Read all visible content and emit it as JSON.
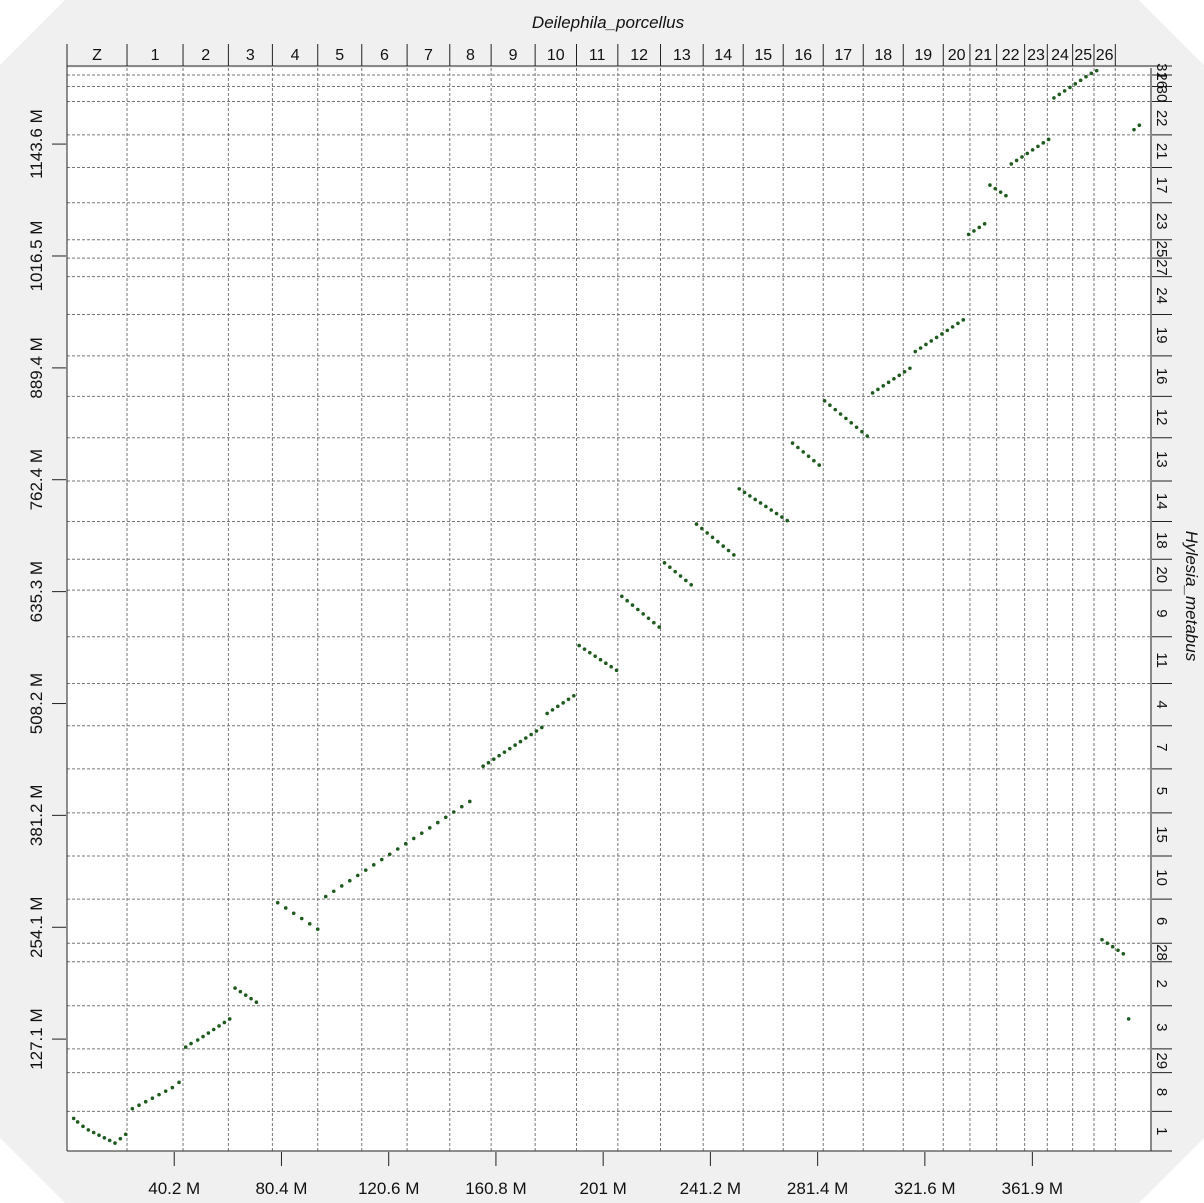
{
  "chart_data": {
    "type": "scatter",
    "title": "",
    "xlabel": "Deilephila_porcellus",
    "ylabel": "Hylesia_metabus",
    "xlim": [
      0,
      406
    ],
    "ylim": [
      0,
      1230
    ],
    "x_ticks": [
      {
        "value": 40.2,
        "label": "40.2 M"
      },
      {
        "value": 80.4,
        "label": "80.4 M"
      },
      {
        "value": 120.6,
        "label": "120.6 M"
      },
      {
        "value": 160.8,
        "label": "160.8 M"
      },
      {
        "value": 201,
        "label": "201 M"
      },
      {
        "value": 241.2,
        "label": "241.2 M"
      },
      {
        "value": 281.4,
        "label": "281.4 M"
      },
      {
        "value": 321.6,
        "label": "321.6 M"
      },
      {
        "value": 361.9,
        "label": "361.9 M"
      }
    ],
    "y_ticks": [
      {
        "value": 127.1,
        "label": "127.1 M"
      },
      {
        "value": 254.1,
        "label": "254.1 M"
      },
      {
        "value": 381.2,
        "label": "381.2 M"
      },
      {
        "value": 508.2,
        "label": "508.2 M"
      },
      {
        "value": 635.3,
        "label": "635.3 M"
      },
      {
        "value": 762.4,
        "label": "762.4 M"
      },
      {
        "value": 889.4,
        "label": "889.4 M"
      },
      {
        "value": 1016.5,
        "label": "1016.5 M"
      },
      {
        "value": 1143.6,
        "label": "1143.6 M"
      }
    ],
    "x_chromosomes": [
      {
        "label": "Z",
        "start": 0,
        "end": 22.5
      },
      {
        "label": "1",
        "start": 22.5,
        "end": 43.5
      },
      {
        "label": "2",
        "start": 43.5,
        "end": 60.5
      },
      {
        "label": "3",
        "start": 60.5,
        "end": 77.0
      },
      {
        "label": "4",
        "start": 77.0,
        "end": 94.0
      },
      {
        "label": "5",
        "start": 94.0,
        "end": 110.5
      },
      {
        "label": "6",
        "start": 110.5,
        "end": 127.5
      },
      {
        "label": "7",
        "start": 127.5,
        "end": 143.5
      },
      {
        "label": "8",
        "start": 143.5,
        "end": 159.0
      },
      {
        "label": "9",
        "start": 159.0,
        "end": 175.5
      },
      {
        "label": "10",
        "start": 175.5,
        "end": 191.0
      },
      {
        "label": "11",
        "start": 191.0,
        "end": 206.5
      },
      {
        "label": "12",
        "start": 206.5,
        "end": 222.5
      },
      {
        "label": "13",
        "start": 222.5,
        "end": 238.5
      },
      {
        "label": "14",
        "start": 238.5,
        "end": 253.5
      },
      {
        "label": "15",
        "start": 253.5,
        "end": 268.5
      },
      {
        "label": "16",
        "start": 268.5,
        "end": 283.5
      },
      {
        "label": "17",
        "start": 283.5,
        "end": 298.5
      },
      {
        "label": "18",
        "start": 298.5,
        "end": 313.5
      },
      {
        "label": "19",
        "start": 313.5,
        "end": 328.5
      },
      {
        "label": "20",
        "start": 328.5,
        "end": 338.5
      },
      {
        "label": "21",
        "start": 338.5,
        "end": 348.5
      },
      {
        "label": "22",
        "start": 348.5,
        "end": 359.0
      },
      {
        "label": "23",
        "start": 359.0,
        "end": 367.5
      },
      {
        "label": "24",
        "start": 367.5,
        "end": 377.0
      },
      {
        "label": "25",
        "start": 377.0,
        "end": 385.0
      },
      {
        "label": "26",
        "start": 385.0,
        "end": 393.0
      },
      {
        "label": "",
        "start": 393.0,
        "end": 406.0
      }
    ],
    "y_chromosomes": [
      {
        "label": "1",
        "start": 0,
        "end": 45
      },
      {
        "label": "8",
        "start": 45,
        "end": 89
      },
      {
        "label": "29",
        "start": 89,
        "end": 116
      },
      {
        "label": "3",
        "start": 116,
        "end": 165
      },
      {
        "label": "2",
        "start": 165,
        "end": 215
      },
      {
        "label": "28",
        "start": 215,
        "end": 236
      },
      {
        "label": "6",
        "start": 236,
        "end": 286
      },
      {
        "label": "10",
        "start": 286,
        "end": 335
      },
      {
        "label": "15",
        "start": 335,
        "end": 384
      },
      {
        "label": "5",
        "start": 384,
        "end": 434
      },
      {
        "label": "7",
        "start": 434,
        "end": 483
      },
      {
        "label": "4",
        "start": 483,
        "end": 531
      },
      {
        "label": "11",
        "start": 531,
        "end": 584
      },
      {
        "label": "9",
        "start": 584,
        "end": 637
      },
      {
        "label": "20",
        "start": 637,
        "end": 672
      },
      {
        "label": "18",
        "start": 672,
        "end": 715
      },
      {
        "label": "14",
        "start": 715,
        "end": 761
      },
      {
        "label": "13",
        "start": 761,
        "end": 810
      },
      {
        "label": "12",
        "start": 810,
        "end": 857
      },
      {
        "label": "16",
        "start": 857,
        "end": 903
      },
      {
        "label": "19",
        "start": 903,
        "end": 950
      },
      {
        "label": "24",
        "start": 950,
        "end": 993
      },
      {
        "label": "27",
        "start": 993,
        "end": 1014
      },
      {
        "label": "25",
        "start": 1014,
        "end": 1035
      },
      {
        "label": "23",
        "start": 1035,
        "end": 1077
      },
      {
        "label": "17",
        "start": 1077,
        "end": 1117
      },
      {
        "label": "21",
        "start": 1117,
        "end": 1154
      },
      {
        "label": "22",
        "start": 1154,
        "end": 1192
      },
      {
        "label": "30",
        "start": 1192,
        "end": 1209
      },
      {
        "label": "26",
        "start": 1209,
        "end": 1222
      },
      {
        "label": "31",
        "start": 1222,
        "end": 1230
      }
    ],
    "series": [
      {
        "x": [
          2.5,
          4.0,
          6.0,
          8.0,
          10.0,
          12.0,
          14.0,
          16.0,
          18.0,
          20.0,
          22.0,
          24.5,
          27.0,
          29.5,
          32.0,
          34.5,
          37.0,
          39.5,
          42.0,
          44.5,
          46.5,
          49.0,
          51.0,
          53.0,
          55.0,
          57.0,
          59.0,
          61.0,
          63.0,
          65.0,
          67.0,
          69.0,
          71.0,
          79.0,
          82.0,
          85.0,
          88.0,
          91.0,
          94.0,
          97.0,
          100.0,
          103.0,
          106.0,
          109.0,
          112.0,
          115.0,
          118.0,
          121.0,
          124.0,
          127.0,
          130.0,
          133.0,
          136.0,
          139.0,
          142.0,
          145.0,
          148.0,
          151.0,
          156.0,
          158.0,
          160.0,
          162.0,
          164.0,
          166.0,
          168.0,
          170.0,
          172.0,
          174.0,
          176.0,
          178.0,
          180.0,
          182.0,
          184.0,
          186.0,
          188.0,
          190.0,
          192.0,
          194.0,
          196.0,
          198.0,
          200.0,
          202.0,
          204.0,
          206.0,
          208.0,
          210.0,
          212.0,
          214.0,
          216.0,
          218.0,
          220.0,
          222.0,
          224.0,
          226.0,
          228.0,
          230.0,
          232.0,
          234.0,
          236.0,
          238.0,
          240.0,
          242.0,
          244.0,
          246.0,
          248.0,
          250.0,
          252.0,
          254.0,
          256.0,
          258.0,
          260.0,
          262.0,
          264.0,
          266.0,
          268.0,
          270.0,
          272.0,
          274.0,
          276.0,
          278.0,
          280.0,
          282.0,
          284.0,
          286.0,
          288.0,
          290.0,
          292.0,
          294.0,
          296.0,
          298.0,
          300.0,
          302.0,
          304.0,
          306.0,
          308.0,
          310.0,
          312.0,
          314.0,
          316.0,
          318.0,
          320.0,
          322.0,
          324.0,
          326.0,
          328.0,
          330.0,
          332.0,
          334.0,
          336.0,
          338.0,
          340.0,
          342.0,
          344.0,
          346.0,
          348.0,
          350.0,
          352.0,
          354.0,
          356.0,
          358.0,
          360.0,
          362.0,
          364.0,
          366.0,
          368.0,
          370.0,
          372.0,
          374.0,
          376.0,
          378.0,
          380.0,
          382.0,
          384.0,
          386.0,
          388.0,
          390.0,
          392.0,
          394.0,
          396.0,
          398.0,
          400.0,
          402.0
        ],
        "y": [
          37.0,
          33.0,
          28.0,
          24.0,
          21.0,
          18.0,
          15.0,
          12.0,
          9.0,
          14.0,
          19.0,
          48.0,
          52.0,
          56.0,
          60.0,
          64.0,
          68.0,
          72.0,
          78.0,
          118.0,
          122.0,
          126.0,
          130.0,
          134.0,
          138.0,
          142.0,
          146.0,
          150.0,
          185.0,
          181.0,
          177.0,
          173.0,
          169.0,
          282.0,
          276.0,
          270.0,
          264.0,
          258.0,
          252.0,
          289.0,
          295.0,
          301.0,
          307.0,
          313.0,
          319.0,
          325.0,
          331.0,
          337.0,
          343.0,
          349.0,
          355.0,
          361.0,
          367.0,
          373.0,
          379.0,
          385.0,
          391.0,
          397.0,
          437.0,
          441.0,
          445.0,
          449.0,
          453.0,
          457.0,
          461.0,
          465.0,
          469.0,
          473.0,
          477.0,
          481.0,
          497.0,
          501.0,
          505.0,
          509.0,
          513.0,
          517.0,
          574.0,
          570.0,
          566.0,
          562.0,
          558.0,
          554.0,
          550.0,
          546.0,
          630.0,
          625.0,
          620.0,
          615.0,
          610.0,
          605.0,
          600.0,
          595.0,
          668.0,
          663.0,
          658.0,
          653.0,
          648.0,
          643.0,
          712.0,
          707.0,
          702.0,
          697.0,
          692.0,
          687.0,
          682.0,
          677.0,
          752.0,
          748.0,
          744.0,
          740.0,
          736.0,
          732.0,
          728.0,
          724.0,
          720.0,
          716.0,
          804.0,
          799.0,
          794.0,
          789.0,
          784.0,
          779.0,
          852.0,
          847.0,
          842.0,
          837.0,
          832.0,
          827.0,
          822.0,
          817.0,
          812.0,
          861.0,
          865.0,
          869.0,
          873.0,
          877.0,
          881.0,
          885.0,
          889.0,
          908.0,
          912.0,
          916.0,
          920.0,
          924.0,
          928.0,
          932.0,
          936.0,
          940.0,
          944.0,
          1041.0,
          1045.0,
          1049.0,
          1053.0,
          1097.0,
          1093.0,
          1089.0,
          1085.0,
          1121.0,
          1125.0,
          1129.0,
          1133.0,
          1137.0,
          1141.0,
          1145.0,
          1149.0,
          1196.0,
          1200.0,
          1204.0,
          1208.0,
          1212.0,
          1216.0,
          1220.0,
          1224.0,
          1227.0,
          240.0,
          236.0,
          232.0,
          228.0,
          224.0,
          150.0,
          1160.0,
          1165.0
        ]
      }
    ]
  }
}
